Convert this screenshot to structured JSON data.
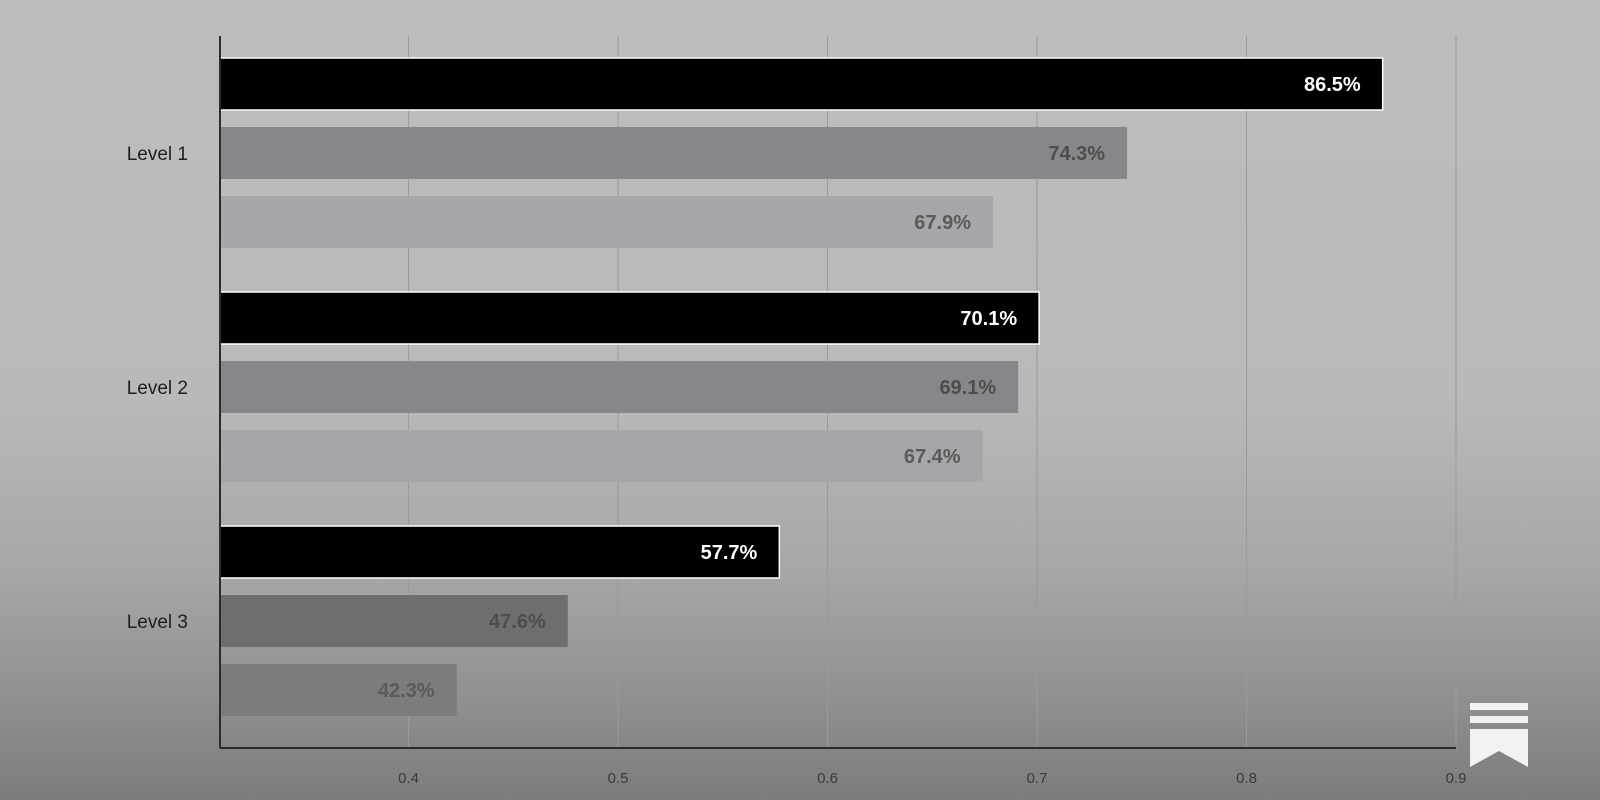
{
  "chart_data": {
    "type": "bar",
    "orientation": "horizontal",
    "categories": [
      "Level 1",
      "Level 2",
      "Level 3"
    ],
    "series": [
      {
        "values": [
          0.865,
          0.701,
          0.577
        ],
        "labels": [
          "86.5%",
          "70.1%",
          "57.7%"
        ],
        "color": "#000000",
        "label_color": "#ffffff"
      },
      {
        "values": [
          0.743,
          0.691,
          0.476
        ],
        "labels": [
          "74.3%",
          "69.1%",
          "47.6%"
        ],
        "color": "#87868a",
        "label_color": "#4d4d4d"
      },
      {
        "values": [
          0.679,
          0.674,
          0.423
        ],
        "labels": [
          "67.9%",
          "67.4%",
          "42.3%"
        ],
        "color": "#a6a7aa",
        "label_color": "#5a5a5a"
      }
    ],
    "level3_colors": [
      "#000000",
      "#6e6d70",
      "#7c7c7e"
    ],
    "xlim": [
      0.31,
      0.9
    ],
    "xticks": [
      "0.4",
      "0.5",
      "0.6",
      "0.7",
      "0.8",
      "0.9"
    ],
    "grid": true,
    "title": "",
    "xlabel": "",
    "ylabel": ""
  },
  "logo": {
    "icon": "bookmark-icon"
  }
}
